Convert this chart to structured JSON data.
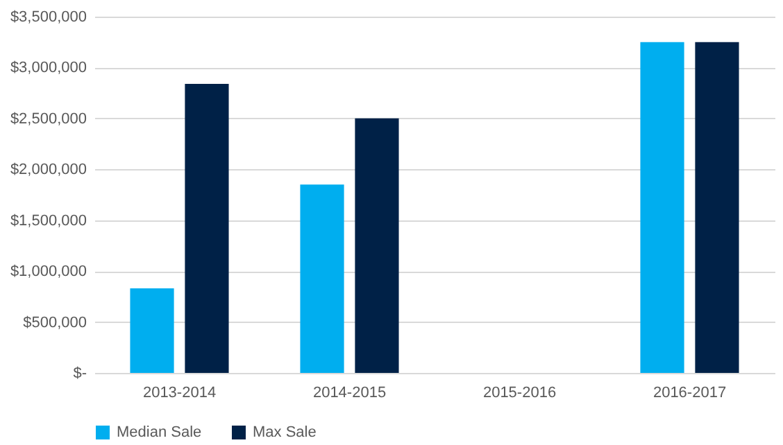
{
  "chart_data": {
    "type": "bar",
    "categories": [
      "2013-2014",
      "2014-2015",
      "2015-2016",
      "2016-2017"
    ],
    "series": [
      {
        "name": "Median Sale",
        "color": "#00aeef",
        "values": [
          830000,
          1850000,
          null,
          3250000
        ]
      },
      {
        "name": "Max Sale",
        "color": "#002147",
        "values": [
          2840000,
          2500000,
          null,
          3250000
        ]
      }
    ],
    "ylim": [
      0,
      3500000
    ],
    "yticks": [
      {
        "value": 0,
        "label": "$-"
      },
      {
        "value": 500000,
        "label": "$500,000"
      },
      {
        "value": 1000000,
        "label": "$1,000,000"
      },
      {
        "value": 1500000,
        "label": "$1,500,000"
      },
      {
        "value": 2000000,
        "label": "$2,000,000"
      },
      {
        "value": 2500000,
        "label": "$2,500,000"
      },
      {
        "value": 3000000,
        "label": "$3,000,000"
      },
      {
        "value": 3500000,
        "label": "$3,500,000"
      }
    ],
    "grid": "y",
    "legend": "bottom"
  }
}
